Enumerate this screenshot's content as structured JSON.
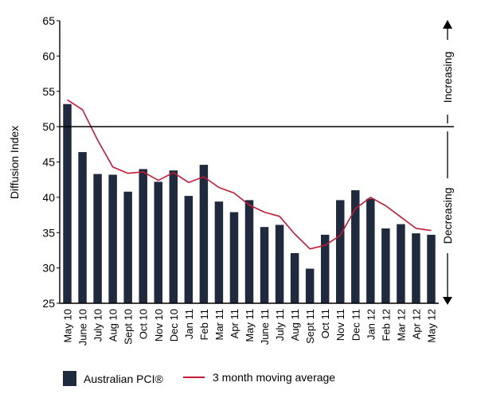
{
  "colors": {
    "bar": "#1f2a3f",
    "line": "#c51a35",
    "axis": "#000000"
  },
  "legend": {
    "bars_label": "Australian PCI®",
    "line_label": "3 month moving average"
  },
  "side_labels": {
    "increasing": "Increasing",
    "decreasing": "Decreasing"
  },
  "chart_data": {
    "type": "bar",
    "title": "",
    "xlabel": "",
    "ylabel": "Diffusion Index",
    "ylim": [
      25,
      65
    ],
    "yticks": [
      25,
      30,
      35,
      40,
      45,
      50,
      55,
      60,
      65
    ],
    "reference_line": 50,
    "grid": false,
    "legend_position": "bottom",
    "categories": [
      "May 10",
      "June 10",
      "July 10",
      "Aug 10",
      "Sept 10",
      "Oct 10",
      "Nov 10",
      "Dec 10",
      "Jan 11",
      "Feb 11",
      "Mar 11",
      "Apr 11",
      "May 11",
      "June 11",
      "July 11",
      "Aug 11",
      "Sept 11",
      "Oct 11",
      "Nov 11",
      "Dec 11",
      "Jan 12",
      "Feb 12",
      "Mar 12",
      "Apr 12",
      "May 12"
    ],
    "series": [
      {
        "name": "Australian PCI®",
        "type": "bar",
        "values": [
          53.2,
          46.4,
          43.3,
          43.2,
          40.8,
          44.0,
          42.2,
          43.8,
          40.2,
          44.6,
          39.4,
          37.9,
          39.6,
          35.8,
          36.1,
          32.1,
          29.9,
          34.7,
          39.6,
          41.0,
          39.8,
          35.6,
          36.2,
          34.9,
          34.7
        ]
      },
      {
        "name": "3 month moving average",
        "type": "line",
        "values": [
          53.8,
          52.4,
          48.1,
          44.3,
          43.4,
          43.6,
          42.4,
          43.5,
          42.1,
          42.9,
          41.4,
          40.6,
          38.9,
          37.9,
          37.3,
          34.8,
          32.7,
          33.2,
          34.6,
          38.4,
          40.0,
          38.8,
          37.2,
          35.6,
          35.3
        ]
      }
    ]
  }
}
